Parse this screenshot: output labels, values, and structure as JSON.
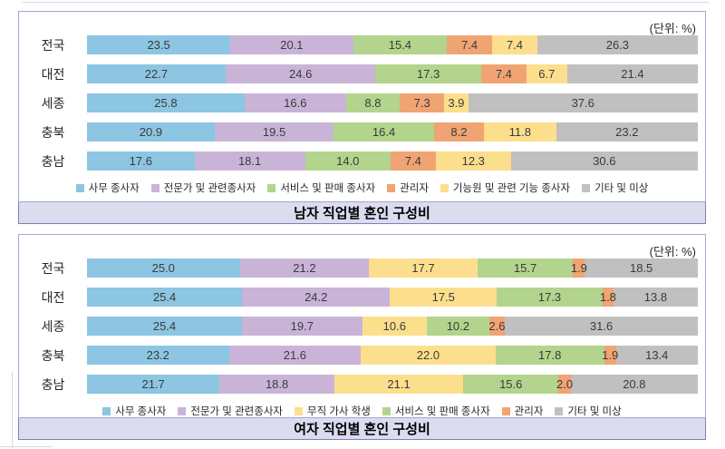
{
  "chart_data": [
    {
      "type": "bar",
      "orientation": "horizontal",
      "stacked": true,
      "title": "남자 직업별 혼인 구성비",
      "unit_label": "(단위: %)",
      "xlim": [
        0,
        100
      ],
      "grid": false,
      "legend_position": "bottom",
      "value_labels": true,
      "categories": [
        "전국",
        "대전",
        "세종",
        "충북",
        "충남"
      ],
      "series": [
        {
          "name": "사무 종사자",
          "color": "#8cc6e2",
          "values": [
            23.5,
            22.7,
            25.8,
            20.9,
            17.6
          ]
        },
        {
          "name": "전문가 및 관련종사자",
          "color": "#c9b4d8",
          "values": [
            20.1,
            24.6,
            16.6,
            19.5,
            18.1
          ]
        },
        {
          "name": "서비스 및 판매 종사자",
          "color": "#b3d48c",
          "values": [
            15.4,
            17.3,
            8.8,
            16.4,
            14.0
          ]
        },
        {
          "name": "관리자",
          "color": "#f0a473",
          "values": [
            7.4,
            7.4,
            7.3,
            8.2,
            7.4
          ]
        },
        {
          "name": "기능원 및 관련 기능 종사자",
          "color": "#fcdf8d",
          "values": [
            7.4,
            6.7,
            3.9,
            11.8,
            12.3
          ]
        },
        {
          "name": "기타 및 미상",
          "color": "#c0c0c0",
          "values": [
            26.3,
            21.4,
            37.6,
            23.2,
            30.6
          ]
        }
      ]
    },
    {
      "type": "bar",
      "orientation": "horizontal",
      "stacked": true,
      "title": "여자 직업별 혼인 구성비",
      "unit_label": "(단위: %)",
      "xlim": [
        0,
        100
      ],
      "grid": false,
      "legend_position": "bottom",
      "value_labels": true,
      "categories": [
        "전국",
        "대전",
        "세종",
        "충북",
        "충남"
      ],
      "series": [
        {
          "name": "사무 종사자",
          "color": "#8cc6e2",
          "values": [
            25.0,
            25.4,
            25.4,
            23.2,
            21.7
          ]
        },
        {
          "name": "전문가 및 관련종사자",
          "color": "#c9b4d8",
          "values": [
            21.2,
            24.2,
            19.7,
            21.6,
            18.8
          ]
        },
        {
          "name": "무직 가사 학생",
          "color": "#fcdf8d",
          "values": [
            17.7,
            17.5,
            10.6,
            22.0,
            21.1
          ]
        },
        {
          "name": "서비스 및 판매 종사자",
          "color": "#b3d48c",
          "values": [
            15.7,
            17.3,
            10.2,
            17.8,
            15.6
          ]
        },
        {
          "name": "관리자",
          "color": "#f0a473",
          "values": [
            1.9,
            1.8,
            2.6,
            1.9,
            2.0
          ]
        },
        {
          "name": "기타 및 미상",
          "color": "#c0c0c0",
          "values": [
            18.5,
            13.8,
            31.6,
            13.4,
            20.8
          ]
        }
      ]
    }
  ]
}
